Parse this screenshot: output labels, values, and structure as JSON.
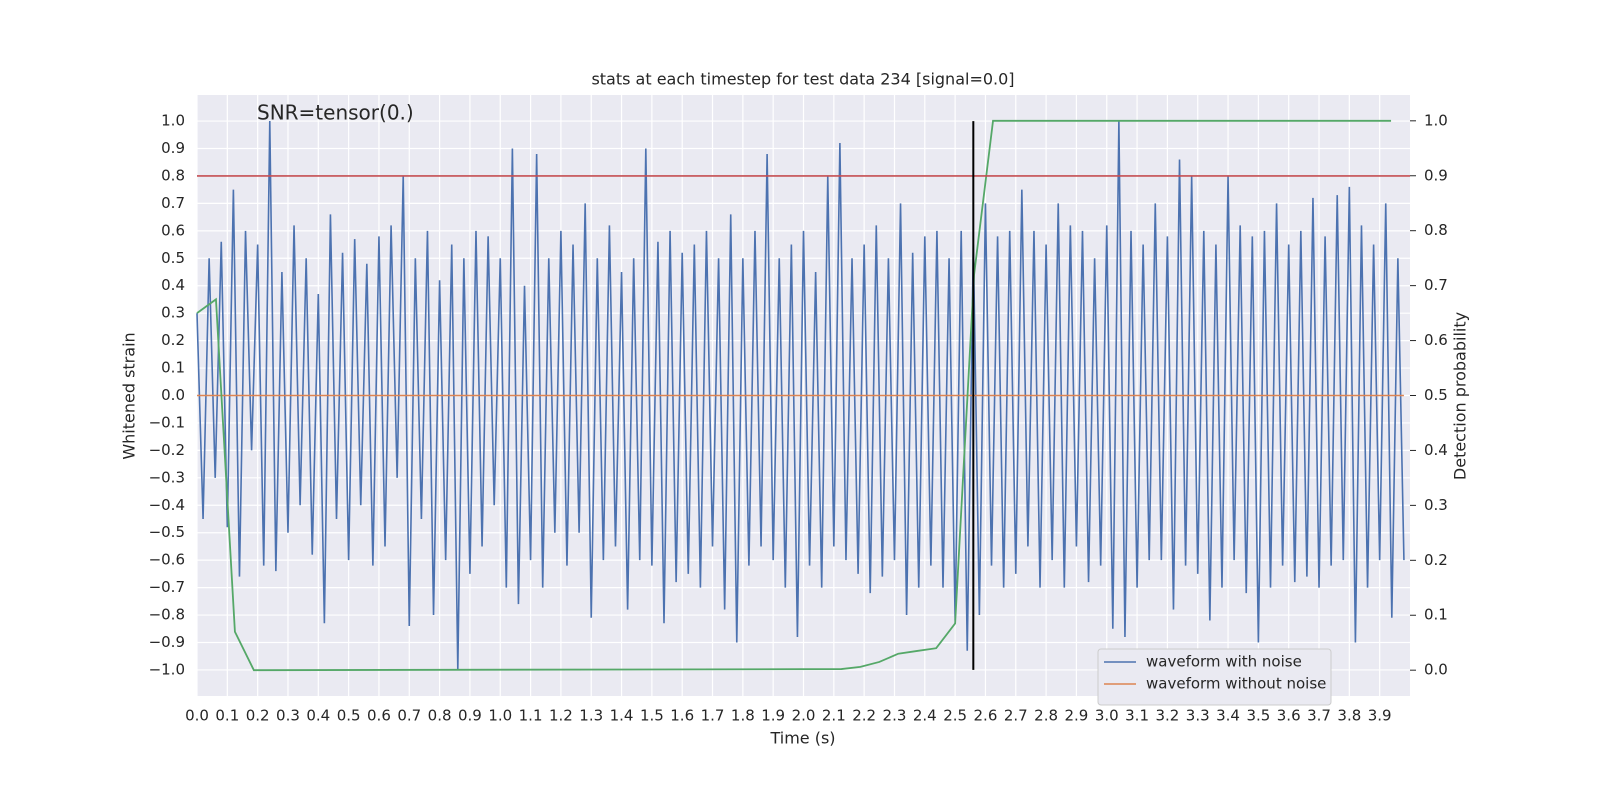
{
  "chart_data": {
    "type": "line",
    "title": "stats at each timestep for test data 234 [signal=0.0]",
    "annotation": "SNR=tensor(0.)",
    "x_label": "Time (s)",
    "y_label": "Whitened strain",
    "y2_label": "Detection probability",
    "grid": true,
    "legend": "lower right",
    "xlim": [
      0,
      4.0
    ],
    "ylim": [
      -1.095,
      1.095
    ],
    "y2lim": [
      -0.047,
      1.047
    ],
    "xticks": [
      {
        "value": 0,
        "label": "0.0"
      },
      0.1,
      0.2,
      0.3,
      0.4,
      0.5,
      0.6,
      0.7,
      0.8,
      0.9,
      {
        "value": 1,
        "label": "1.0"
      },
      1.1,
      1.2,
      1.3,
      1.4,
      1.5,
      1.6,
      1.7,
      1.8,
      1.9,
      {
        "value": 2,
        "label": "2.0"
      },
      2.1,
      2.2,
      2.3,
      2.4,
      2.5,
      2.6,
      2.7,
      2.8,
      2.9,
      {
        "value": 3,
        "label": "3.0"
      },
      3.1,
      3.2,
      3.3,
      3.4,
      3.5,
      3.6,
      3.7,
      3.8,
      3.9
    ],
    "yticks": [
      {
        "value": -1,
        "label": "−1.0"
      },
      {
        "value": -0.9,
        "label": "−0.9"
      },
      {
        "value": -0.8,
        "label": "−0.8"
      },
      {
        "value": -0.7,
        "label": "−0.7"
      },
      {
        "value": -0.6,
        "label": "−0.6"
      },
      {
        "value": -0.5,
        "label": "−0.5"
      },
      {
        "value": -0.4,
        "label": "−0.4"
      },
      {
        "value": -0.3,
        "label": "−0.3"
      },
      {
        "value": -0.2,
        "label": "−0.2"
      },
      {
        "value": -0.1,
        "label": "−0.1"
      },
      {
        "value": 0,
        "label": "0.0"
      },
      0.1,
      0.2,
      0.3,
      0.4,
      0.5,
      0.6,
      0.7,
      0.8,
      0.9,
      {
        "value": 1,
        "label": "1.0"
      }
    ],
    "y2ticks": [
      {
        "value": 0,
        "label": "0.0"
      },
      0.1,
      0.2,
      0.3,
      0.4,
      0.5,
      0.6,
      0.7,
      0.8,
      0.9,
      {
        "value": 1,
        "label": "1.0"
      }
    ],
    "hline": {
      "y": 0.8,
      "color": "#c44e52"
    },
    "vline": {
      "x": 2.56,
      "ymin": -1,
      "ymax": 1,
      "color": "#000000"
    },
    "series": [
      {
        "name": "waveform with noise",
        "color": "#4c72b0",
        "x": [
          0,
          0.02,
          0.04,
          0.06,
          0.08,
          0.1,
          0.12,
          0.14,
          0.16,
          0.18,
          0.2,
          0.22,
          0.24,
          0.26,
          0.28,
          0.3,
          0.32,
          0.34,
          0.36,
          0.38,
          0.4,
          0.42,
          0.44,
          0.46,
          0.48,
          0.5,
          0.52,
          0.54,
          0.56,
          0.58,
          0.6,
          0.62,
          0.64,
          0.66,
          0.68,
          0.7,
          0.72,
          0.74,
          0.76,
          0.78,
          0.8,
          0.82,
          0.84,
          0.86,
          0.88,
          0.9,
          0.92,
          0.94,
          0.96,
          0.98,
          1,
          1.02,
          1.04,
          1.06,
          1.08,
          1.1,
          1.12,
          1.14,
          1.16,
          1.18,
          1.2,
          1.22,
          1.24,
          1.26,
          1.28,
          1.3,
          1.32,
          1.34,
          1.36,
          1.38,
          1.4,
          1.42,
          1.44,
          1.46,
          1.48,
          1.5,
          1.52,
          1.54,
          1.56,
          1.58,
          1.6,
          1.62,
          1.64,
          1.66,
          1.68,
          1.7,
          1.72,
          1.74,
          1.76,
          1.78,
          1.8,
          1.82,
          1.84,
          1.86,
          1.88,
          1.9,
          1.92,
          1.94,
          1.96,
          1.98,
          2,
          2.02,
          2.04,
          2.06,
          2.08,
          2.1,
          2.12,
          2.14,
          2.16,
          2.18,
          2.2,
          2.22,
          2.24,
          2.26,
          2.28,
          2.3,
          2.32,
          2.34,
          2.36,
          2.38,
          2.4,
          2.42,
          2.44,
          2.46,
          2.48,
          2.5,
          2.52,
          2.54,
          2.56,
          2.58,
          2.6,
          2.62,
          2.64,
          2.66,
          2.68,
          2.7,
          2.72,
          2.74,
          2.76,
          2.78,
          2.8,
          2.82,
          2.84,
          2.86,
          2.88,
          2.9,
          2.92,
          2.94,
          2.96,
          2.98,
          3,
          3.02,
          3.04,
          3.06,
          3.08,
          3.1,
          3.12,
          3.14,
          3.16,
          3.18,
          3.2,
          3.22,
          3.24,
          3.26,
          3.28,
          3.3,
          3.32,
          3.34,
          3.36,
          3.38,
          3.4,
          3.42,
          3.44,
          3.46,
          3.48,
          3.5,
          3.52,
          3.54,
          3.56,
          3.58,
          3.6,
          3.62,
          3.64,
          3.66,
          3.68,
          3.7,
          3.72,
          3.74,
          3.76,
          3.78,
          3.8,
          3.82,
          3.84,
          3.86,
          3.88,
          3.9,
          3.92,
          3.94,
          3.96,
          3.98
        ],
        "values": [
          0.3,
          -0.45,
          0.5,
          -0.3,
          0.56,
          -0.48,
          0.75,
          -0.66,
          0.6,
          -0.2,
          0.55,
          -0.62,
          1.0,
          -0.64,
          0.45,
          -0.5,
          0.62,
          -0.4,
          0.5,
          -0.58,
          0.37,
          -0.83,
          0.66,
          -0.45,
          0.52,
          -0.6,
          0.57,
          -0.4,
          0.48,
          -0.62,
          0.58,
          -0.55,
          0.62,
          -0.3,
          0.8,
          -0.84,
          0.5,
          -0.45,
          0.6,
          -0.8,
          0.42,
          -0.6,
          0.55,
          -1.0,
          0.5,
          -0.65,
          0.6,
          -0.55,
          0.58,
          -0.4,
          0.5,
          -0.7,
          0.9,
          -0.76,
          0.4,
          -0.6,
          0.88,
          -0.7,
          0.5,
          -0.5,
          0.6,
          -0.62,
          0.55,
          -0.5,
          0.7,
          -0.81,
          0.5,
          -0.6,
          0.62,
          -0.55,
          0.45,
          -0.78,
          0.5,
          -0.6,
          0.9,
          -0.62,
          0.56,
          -0.83,
          0.6,
          -0.68,
          0.52,
          -0.65,
          0.55,
          -0.7,
          0.6,
          -0.55,
          0.5,
          -0.78,
          0.66,
          -0.9,
          0.5,
          -0.62,
          0.6,
          -0.55,
          0.88,
          -0.6,
          0.5,
          -0.7,
          0.55,
          -0.88,
          0.6,
          -0.62,
          0.45,
          -0.7,
          0.8,
          -0.55,
          0.92,
          -0.6,
          0.5,
          -0.65,
          0.55,
          -0.72,
          0.62,
          -0.66,
          0.5,
          -0.6,
          0.7,
          -0.8,
          0.52,
          -0.7,
          0.58,
          -0.62,
          0.6,
          -0.7,
          0.5,
          -0.82,
          0.6,
          -0.93,
          0.55,
          -0.8,
          0.7,
          -0.62,
          0.58,
          -0.7,
          0.6,
          -0.65,
          0.75,
          -0.55,
          0.6,
          -0.7,
          0.55,
          -0.6,
          0.7,
          -0.7,
          0.62,
          -0.55,
          0.6,
          -0.68,
          0.5,
          -0.62,
          0.62,
          -0.85,
          1.0,
          -0.88,
          0.6,
          -0.7,
          0.55,
          -0.6,
          0.7,
          -0.6,
          0.58,
          -0.78,
          0.86,
          -0.62,
          0.8,
          -0.65,
          0.6,
          -0.82,
          0.55,
          -0.7,
          0.8,
          -0.6,
          0.62,
          -0.72,
          0.58,
          -0.9,
          0.6,
          -0.7,
          0.7,
          -0.62,
          0.55,
          -0.68,
          0.6,
          -0.66,
          0.72,
          -0.7,
          0.58,
          -0.62,
          0.73,
          -0.6,
          0.76,
          -0.9,
          0.62,
          -0.7,
          0.55,
          -0.6,
          0.7,
          -0.81,
          0.5,
          -0.6
        ]
      },
      {
        "name": "waveform without noise",
        "color": "#dd8452",
        "x": [
          0,
          3.98
        ],
        "values": [
          0,
          0
        ]
      },
      {
        "color": "#55a868",
        "axis": "y2",
        "x": [
          0,
          0.0625,
          0.125,
          0.1875,
          2.125,
          2.1875,
          2.25,
          2.3125,
          2.375,
          2.4375,
          2.5,
          2.5625,
          2.625,
          2.6875,
          3.9375
        ],
        "values": [
          0.65,
          0.675,
          0.07,
          0.0,
          0.002,
          0.006,
          0.015,
          0.03,
          0.035,
          0.04,
          0.085,
          0.72,
          1.0,
          1.0,
          1.0
        ]
      }
    ]
  }
}
